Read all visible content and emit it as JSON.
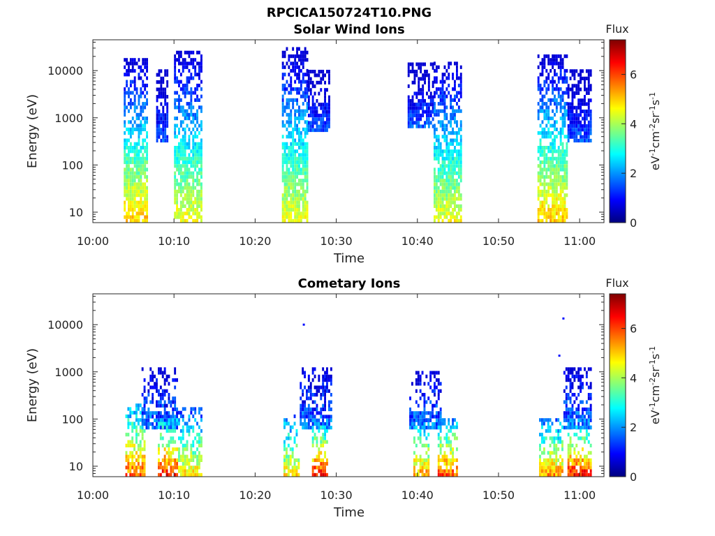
{
  "figure_title": "RPCICA150724T10.PNG",
  "colorscale": [
    "#00007f",
    "#0000ff",
    "#007fff",
    "#00ffff",
    "#7fff7f",
    "#ffff00",
    "#ff7f00",
    "#ff0000",
    "#7f0000"
  ],
  "chart_data": [
    {
      "type": "heatmap",
      "title": "Solar Wind Ions",
      "xlabel": "Time",
      "ylabel": "Energy (eV)",
      "x_ticks": [
        "10:00",
        "10:10",
        "10:20",
        "10:30",
        "10:40",
        "10:50",
        "11:00"
      ],
      "x_range_minutes": [
        0,
        63
      ],
      "y_scale": "log",
      "y_ticks": [
        "10",
        "100",
        "1000",
        "10000"
      ],
      "y_range": [
        6,
        45000
      ],
      "colorbar": {
        "title": "Flux",
        "label": "eV-1cm-2sr-1s-1",
        "ticks": [
          "0",
          "2",
          "4",
          "6"
        ],
        "range": [
          0,
          7.4
        ]
      },
      "bursts": [
        {
          "t_start": 3.8,
          "t_end": 6.8,
          "e_min": 6,
          "e_max": 16000,
          "peak_flux": 5.5
        },
        {
          "t_start": 7.8,
          "t_end": 9.3,
          "e_min": 300,
          "e_max": 10000,
          "peak_flux": 2.0
        },
        {
          "t_start": 10.0,
          "t_end": 13.5,
          "e_min": 6,
          "e_max": 25000,
          "peak_flux": 5.0
        },
        {
          "t_start": 23.3,
          "t_end": 26.5,
          "e_min": 6,
          "e_max": 28000,
          "peak_flux": 5.0
        },
        {
          "t_start": 26.5,
          "t_end": 29.2,
          "e_min": 500,
          "e_max": 10000,
          "peak_flux": 2.0
        },
        {
          "t_start": 38.8,
          "t_end": 42.0,
          "e_min": 600,
          "e_max": 14000,
          "peak_flux": 2.0
        },
        {
          "t_start": 42.0,
          "t_end": 45.5,
          "e_min": 6,
          "e_max": 15000,
          "peak_flux": 5.0
        },
        {
          "t_start": 54.8,
          "t_end": 58.5,
          "e_min": 6,
          "e_max": 20000,
          "peak_flux": 5.5
        },
        {
          "t_start": 58.5,
          "t_end": 61.3,
          "e_min": 300,
          "e_max": 10000,
          "peak_flux": 2.0
        }
      ]
    },
    {
      "type": "heatmap",
      "title": "Cometary Ions",
      "xlabel": "Time",
      "ylabel": "Energy (eV)",
      "x_ticks": [
        "10:00",
        "10:10",
        "10:20",
        "10:30",
        "10:40",
        "10:50",
        "11:00"
      ],
      "x_range_minutes": [
        0,
        63
      ],
      "y_scale": "log",
      "y_ticks": [
        "10",
        "100",
        "1000",
        "10000"
      ],
      "y_range": [
        6,
        45000
      ],
      "colorbar": {
        "title": "Flux",
        "label": "eV-1cm-2sr-1s-1",
        "ticks": [
          "0",
          "2",
          "4",
          "6"
        ],
        "range": [
          0,
          7.4
        ]
      },
      "bursts": [
        {
          "t_start": 4.0,
          "t_end": 6.5,
          "e_min": 6,
          "e_max": 180,
          "peak_flux": 6.5
        },
        {
          "t_start": 6.0,
          "t_end": 10.5,
          "e_min": 60,
          "e_max": 1100,
          "peak_flux": 2.5
        },
        {
          "t_start": 8.0,
          "t_end": 10.5,
          "e_min": 6,
          "e_max": 90,
          "peak_flux": 7.0
        },
        {
          "t_start": 10.5,
          "t_end": 13.5,
          "e_min": 6,
          "e_max": 150,
          "peak_flux": 5.5
        },
        {
          "t_start": 23.5,
          "t_end": 25.5,
          "e_min": 6,
          "e_max": 120,
          "peak_flux": 5.5
        },
        {
          "t_start": 25.5,
          "t_end": 29.5,
          "e_min": 60,
          "e_max": 1200,
          "peak_flux": 2.5
        },
        {
          "t_start": 27.0,
          "t_end": 29.0,
          "e_min": 6,
          "e_max": 80,
          "peak_flux": 7.0
        },
        {
          "t_start": 39.0,
          "t_end": 43.0,
          "e_min": 60,
          "e_max": 1000,
          "peak_flux": 2.5
        },
        {
          "t_start": 39.5,
          "t_end": 41.5,
          "e_min": 6,
          "e_max": 90,
          "peak_flux": 6.0
        },
        {
          "t_start": 42.5,
          "t_end": 45.0,
          "e_min": 6,
          "e_max": 100,
          "peak_flux": 6.5
        },
        {
          "t_start": 55.0,
          "t_end": 58.0,
          "e_min": 6,
          "e_max": 90,
          "peak_flux": 6.0
        },
        {
          "t_start": 58.0,
          "t_end": 61.5,
          "e_min": 60,
          "e_max": 1200,
          "peak_flux": 2.5
        },
        {
          "t_start": 58.5,
          "t_end": 61.5,
          "e_min": 6,
          "e_max": 70,
          "peak_flux": 7.0
        }
      ],
      "isolated_points": [
        {
          "t": 26.0,
          "e": 10000,
          "flux": 1.0
        },
        {
          "t": 57.5,
          "e": 2200,
          "flux": 1.0
        },
        {
          "t": 58.0,
          "e": 13500,
          "flux": 1.0
        }
      ]
    }
  ]
}
